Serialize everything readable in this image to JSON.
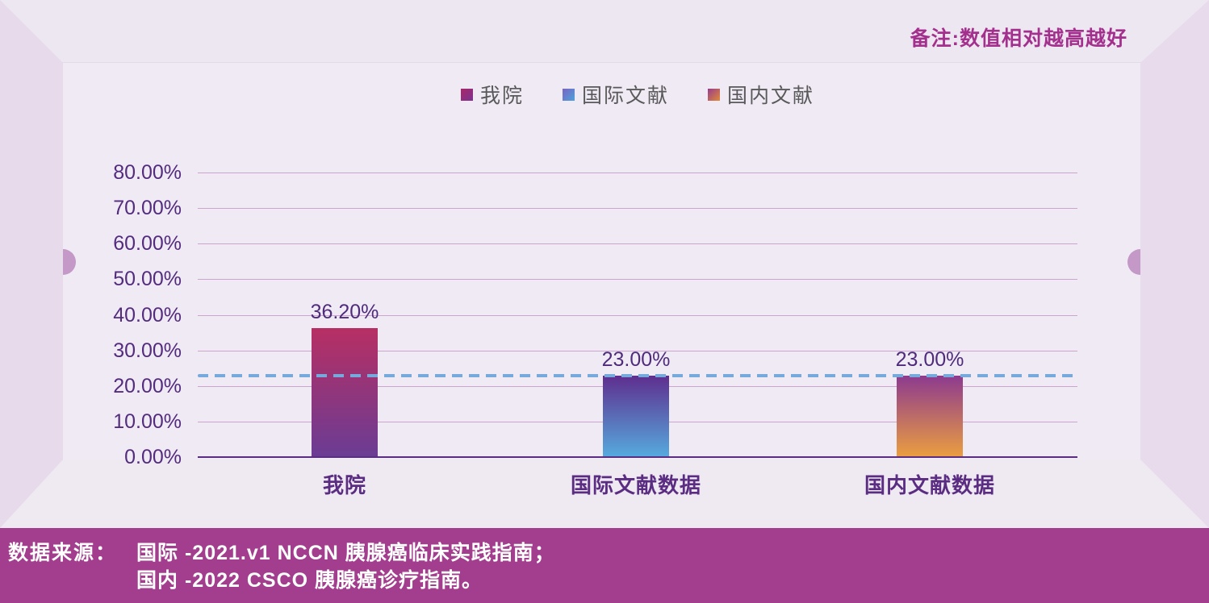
{
  "note": {
    "text": "备注:数值相对越高越好"
  },
  "chart_data": {
    "type": "bar",
    "title": "",
    "categories": [
      "我院",
      "国际文献数据",
      "国内文献数据"
    ],
    "values": [
      36.2,
      23.0,
      23.0
    ],
    "value_labels": [
      "36.20%",
      "23.00%",
      "23.00%"
    ],
    "legend": [
      "我院",
      "国际文献",
      "国内文献"
    ],
    "legend_position": "top",
    "y_ticks": [
      "80.00%",
      "70.00%",
      "60.00%",
      "50.00%",
      "40.00%",
      "30.00%",
      "20.00%",
      "10.00%",
      "0.00%"
    ],
    "ylim": [
      0,
      80
    ],
    "grid": true,
    "reference_line": {
      "value": 23.0,
      "style": "dashed",
      "color": "#76AADC"
    },
    "bar_gradients": [
      [
        "#B72F63",
        "#6B3C94"
      ],
      [
        "#5E2E8E",
        "#56A9DD"
      ],
      [
        "#8D3A8F",
        "#EA9D40"
      ]
    ]
  },
  "footer": {
    "label": "数据来源：",
    "line1": "国际 -2021.v1 NCCN 胰腺癌临床实践指南；",
    "line2": "国内 -2022 CSCO 胰腺癌诊疗指南。"
  },
  "colors": {
    "background_panel": "#F0EAF4",
    "frame_walls": "#E6DAEB",
    "footer_background": "#A33D8D",
    "note_text": "#A4308E",
    "axis_text": "#532C7E",
    "axis_line": "#5B2D82",
    "gridline": "#CDA4CE",
    "reference_dash": "#76AADC",
    "legend_text": "#595959",
    "knob": "#C498C7"
  }
}
